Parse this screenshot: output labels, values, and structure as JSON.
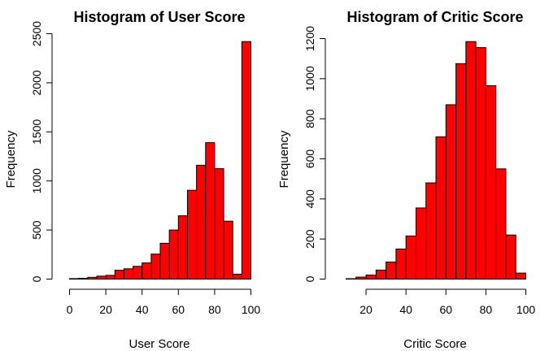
{
  "chart_data": [
    {
      "type": "bar",
      "title": "Histogram of User Score",
      "xlabel": "User Score",
      "ylabel": "Frequency",
      "bin_edges": [
        0,
        5,
        10,
        15,
        20,
        25,
        30,
        35,
        40,
        45,
        50,
        55,
        60,
        65,
        70,
        75,
        80,
        85,
        90,
        95,
        100
      ],
      "values": [
        5,
        8,
        18,
        30,
        38,
        90,
        105,
        130,
        165,
        255,
        365,
        500,
        645,
        905,
        1160,
        1390,
        1125,
        590,
        50,
        2420
      ],
      "x_ticks": [
        0,
        20,
        40,
        60,
        80,
        100
      ],
      "y_ticks": [
        0,
        500,
        1000,
        1500,
        2000,
        2500
      ],
      "xlim": [
        0,
        100
      ],
      "ylim": [
        0,
        2500
      ],
      "bar_color": "#ff0000"
    },
    {
      "type": "bar",
      "title": "Histogram of Critic Score",
      "xlabel": "Critic Score",
      "ylabel": "Frequency",
      "bin_edges": [
        10,
        15,
        20,
        25,
        30,
        35,
        40,
        45,
        50,
        55,
        60,
        65,
        70,
        75,
        80,
        85,
        90,
        95,
        100
      ],
      "values": [
        2,
        10,
        20,
        45,
        85,
        150,
        215,
        355,
        480,
        710,
        870,
        1075,
        1185,
        1155,
        965,
        550,
        220,
        30
      ],
      "x_ticks": [
        20,
        40,
        60,
        80,
        100
      ],
      "y_ticks": [
        0,
        200,
        400,
        600,
        800,
        1000,
        1200
      ],
      "xlim": [
        10,
        100
      ],
      "ylim": [
        0,
        1200
      ],
      "bar_color": "#ff0000"
    }
  ]
}
